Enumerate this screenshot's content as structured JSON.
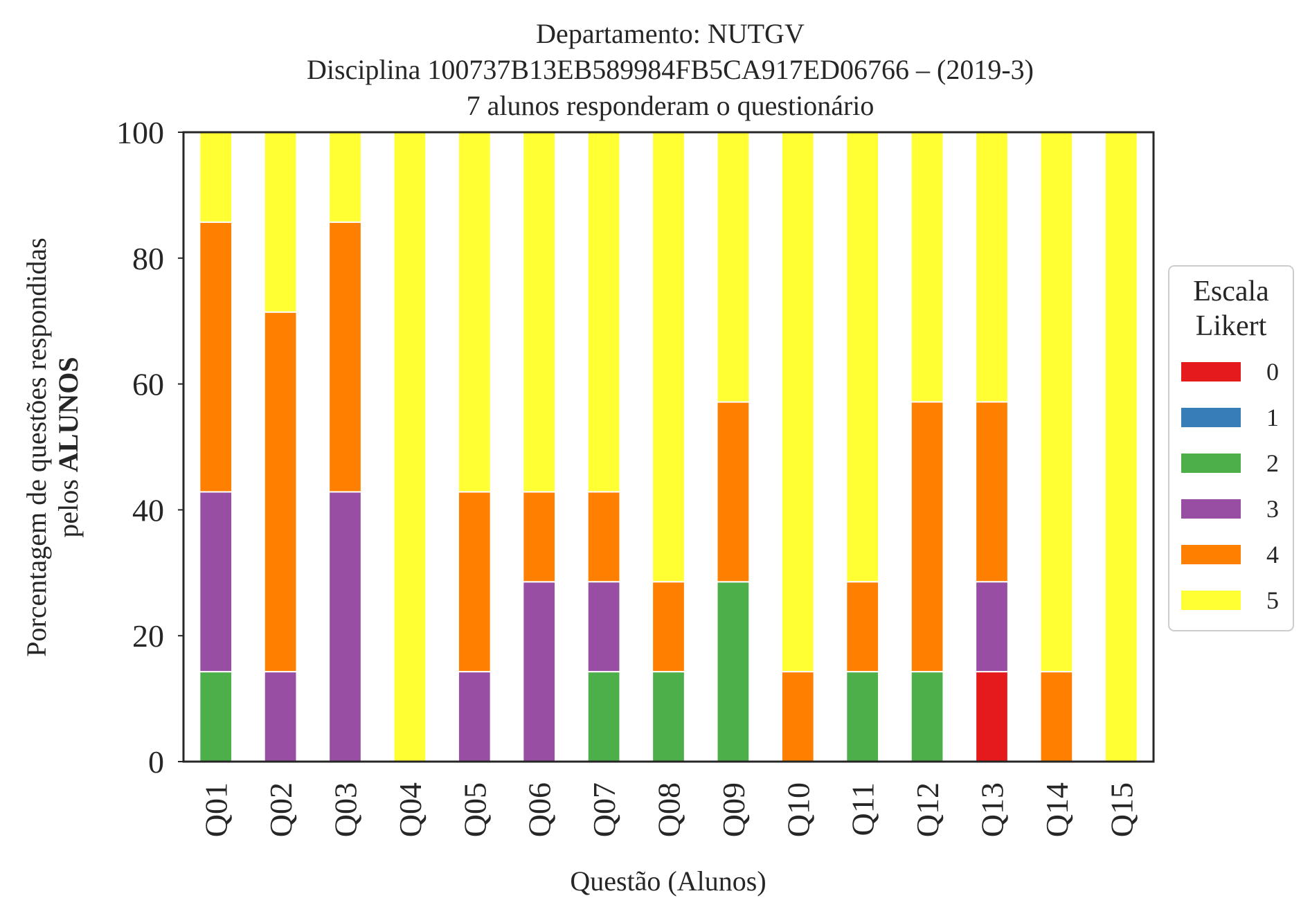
{
  "chart_data": {
    "type": "bar",
    "stacked": true,
    "title_lines": [
      "Departamento: NUTGV",
      "Disciplina 100737B13EB589984FB5CA917ED06766 – (2019-3)",
      "7 alunos responderam o questionário"
    ],
    "xlabel": "Questão (Alunos)",
    "ylabel_line1": "Porcentagem de questões respondidas",
    "ylabel_line2_prefix": "pelos ",
    "ylabel_line2_bold": "ALUNOS",
    "ylim": [
      0,
      100
    ],
    "yticks": [
      "0",
      "20",
      "40",
      "60",
      "80",
      "100"
    ],
    "grid": false,
    "categories": [
      "Q01",
      "Q02",
      "Q03",
      "Q04",
      "Q05",
      "Q06",
      "Q07",
      "Q08",
      "Q09",
      "Q10",
      "Q11",
      "Q12",
      "Q13",
      "Q14",
      "Q15"
    ],
    "series": [
      {
        "name": "0",
        "color": "#e41a1c",
        "values": [
          0,
          0,
          0,
          0,
          0,
          0,
          0,
          0,
          0,
          0,
          0,
          0,
          14.29,
          0,
          0
        ]
      },
      {
        "name": "1",
        "color": "#377eb8",
        "values": [
          0,
          0,
          0,
          0,
          0,
          0,
          0,
          0,
          0,
          0,
          0,
          0,
          0,
          0,
          0
        ]
      },
      {
        "name": "2",
        "color": "#4daf4a",
        "values": [
          14.29,
          0,
          0,
          0,
          0,
          0,
          14.29,
          14.29,
          28.57,
          0,
          14.29,
          14.29,
          0,
          0,
          0
        ]
      },
      {
        "name": "3",
        "color": "#984ea3",
        "values": [
          28.57,
          14.29,
          42.86,
          0,
          14.29,
          28.57,
          14.29,
          0,
          0,
          0,
          0,
          0,
          14.29,
          0,
          0
        ]
      },
      {
        "name": "4",
        "color": "#ff7f00",
        "values": [
          42.86,
          57.14,
          42.86,
          0,
          28.57,
          14.29,
          14.29,
          14.29,
          28.57,
          14.29,
          14.29,
          42.86,
          28.57,
          14.29,
          0
        ]
      },
      {
        "name": "5",
        "color": "#ffff33",
        "values": [
          14.29,
          28.57,
          14.29,
          100,
          57.14,
          57.14,
          57.14,
          71.43,
          42.86,
          85.71,
          71.43,
          42.86,
          42.86,
          85.71,
          100
        ]
      }
    ],
    "legend": {
      "title_lines": [
        "Escala",
        "Likert"
      ],
      "placement": "center-right, outside"
    }
  }
}
